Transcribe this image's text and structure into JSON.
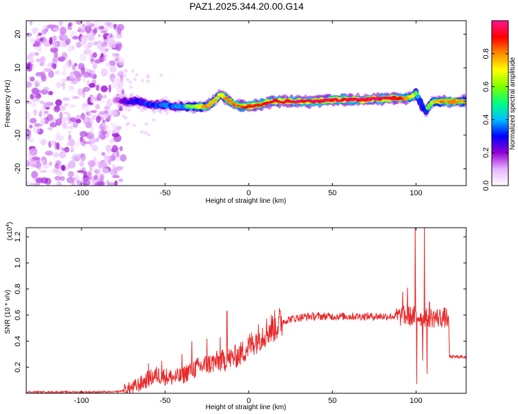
{
  "title": "PAZ1.2025.344.20.00.G14",
  "colors": {
    "snr_line": "#e8282a",
    "low_amp": "#8a2be2",
    "ridge_core": "#e8202a"
  },
  "chart_data": [
    {
      "type": "heatmap",
      "title": "PAZ1.2025.344.20.00.G14",
      "xlabel": "Height of straight line (km)",
      "ylabel": "Frequency (Hz)",
      "xlim": [
        -133,
        130
      ],
      "ylim": [
        -25,
        24
      ],
      "xticks": [
        -100,
        -50,
        0,
        50,
        100
      ],
      "yticks": [
        20,
        10,
        0,
        -10,
        -20
      ],
      "colorbar": {
        "label": "Normalized spectral amplitude",
        "range": [
          0,
          1
        ],
        "ticks": [
          0.0,
          0.2,
          0.4,
          0.6,
          0.8
        ],
        "colormap": [
          "#ffffff",
          "#e6b3ff",
          "#9400d3",
          "#0000ff",
          "#00bfff",
          "#00ff7f",
          "#7fff00",
          "#ffff00",
          "#ff8c00",
          "#ff0000",
          "#ff1493"
        ]
      },
      "noise_region": {
        "x_range": [
          -133,
          -75
        ],
        "freq_range": [
          -25,
          24
        ],
        "amplitude": 0.15
      },
      "ridge": {
        "x": [
          -80,
          -75,
          -70,
          -65,
          -60,
          -55,
          -50,
          -45,
          -40,
          -35,
          -30,
          -25,
          -20,
          -17,
          -15,
          -12,
          -10,
          -5,
          0,
          5,
          10,
          15,
          20,
          25,
          30,
          35,
          40,
          45,
          50,
          55,
          60,
          65,
          70,
          75,
          80,
          85,
          90,
          95,
          98,
          100,
          102,
          104,
          106,
          108,
          110,
          115,
          120,
          125,
          130
        ],
        "freq": [
          0.5,
          0,
          0,
          0,
          -1,
          -1,
          -1,
          -1.5,
          -1.5,
          -1.5,
          -1.5,
          -1.5,
          0.5,
          2,
          1.5,
          0.5,
          -0.5,
          -1.5,
          -1.5,
          -1,
          -0.5,
          0,
          0,
          0,
          0,
          0,
          0,
          0.3,
          0.5,
          0.5,
          0.5,
          0.5,
          0.5,
          0.8,
          0.8,
          1,
          1,
          1,
          1.5,
          2.5,
          0.5,
          -2,
          -3,
          -1,
          0,
          0,
          0,
          0,
          0
        ],
        "amplitude": [
          0.15,
          0.3,
          0.4,
          0.4,
          0.45,
          0.45,
          0.5,
          0.5,
          0.5,
          0.6,
          0.7,
          0.8,
          0.75,
          0.7,
          0.75,
          0.8,
          0.8,
          0.85,
          0.9,
          0.9,
          0.9,
          0.95,
          0.95,
          0.95,
          0.95,
          0.95,
          0.95,
          0.95,
          0.95,
          0.95,
          0.95,
          0.95,
          0.95,
          0.95,
          0.95,
          0.95,
          0.9,
          0.8,
          0.7,
          0.6,
          0.5,
          0.45,
          0.5,
          0.6,
          0.7,
          0.8,
          0.8,
          0.8,
          0.75
        ]
      }
    },
    {
      "type": "line",
      "xlabel": "Height of straight line (km)",
      "ylabel": "SNR (10 * v/v)",
      "y_multiplier_label": "(x10",
      "y_multiplier_exponent": "4",
      "y_multiplier_suffix": ")",
      "xlim": [
        -133,
        130
      ],
      "ylim": [
        0,
        1.27
      ],
      "xticks": [
        -100,
        -50,
        0,
        50,
        100
      ],
      "yticks": [
        0.2,
        0.4,
        0.6,
        0.8,
        1.0,
        1.2
      ],
      "envelope": {
        "x": [
          -133,
          -80,
          -75,
          -70,
          -65,
          -60,
          -55,
          -50,
          -45,
          -40,
          -35,
          -30,
          -25,
          -20,
          -15,
          -10,
          -5,
          0,
          5,
          10,
          15,
          20,
          25,
          30,
          35,
          40,
          45,
          50,
          55,
          60,
          65,
          70,
          75,
          80,
          85,
          90,
          95,
          100,
          105,
          110,
          115,
          119.5,
          120,
          125,
          130
        ],
        "y": [
          0.01,
          0.01,
          0.02,
          0.04,
          0.07,
          0.11,
          0.14,
          0.13,
          0.12,
          0.13,
          0.18,
          0.2,
          0.22,
          0.24,
          0.25,
          0.27,
          0.3,
          0.36,
          0.42,
          0.47,
          0.51,
          0.55,
          0.57,
          0.58,
          0.59,
          0.59,
          0.59,
          0.59,
          0.59,
          0.59,
          0.59,
          0.59,
          0.59,
          0.59,
          0.59,
          0.59,
          0.59,
          0.59,
          0.59,
          0.58,
          0.58,
          0.58,
          0.28,
          0.28,
          0.28
        ]
      },
      "spikes": [
        {
          "x": -60,
          "y": 0.23
        },
        {
          "x": -52,
          "y": 0.25
        },
        {
          "x": -40,
          "y": 0.3
        },
        {
          "x": -34,
          "y": 0.4
        },
        {
          "x": -25,
          "y": 0.42
        },
        {
          "x": -17,
          "y": 0.43
        },
        {
          "x": -13,
          "y": 0.63
        },
        {
          "x": 92,
          "y": 0.78
        },
        {
          "x": 95,
          "y": 0.81
        },
        {
          "x": 99.5,
          "y": 1.3
        },
        {
          "x": 100.5,
          "y": 0.07
        },
        {
          "x": 104,
          "y": 0.25
        },
        {
          "x": 105,
          "y": 1.28
        },
        {
          "x": 106.5,
          "y": 0.15
        },
        {
          "x": 108,
          "y": 0.7
        }
      ]
    }
  ]
}
